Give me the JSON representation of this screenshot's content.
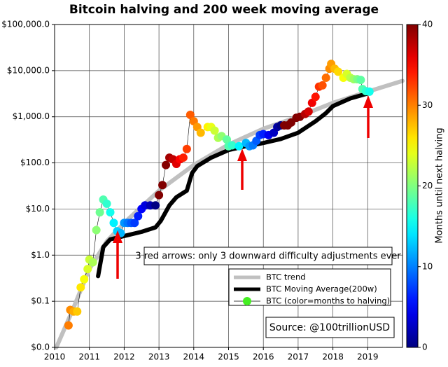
{
  "chart_data": {
    "type": "line",
    "title": "Bitcoin halving and 200 week moving average",
    "log_scale_y": true,
    "grid": true,
    "xlim": [
      2010,
      2020
    ],
    "xticks": [
      2010,
      2011,
      2012,
      2013,
      2014,
      2015,
      2016,
      2017,
      2018,
      2019
    ],
    "ylim": [
      0.01,
      100000
    ],
    "yticks": [
      {
        "value": 0.01,
        "label": "$0.0"
      },
      {
        "value": 0.1,
        "label": "$0.1"
      },
      {
        "value": 1,
        "label": "$1.0"
      },
      {
        "value": 10,
        "label": "$10.0"
      },
      {
        "value": 100,
        "label": "$100.0"
      },
      {
        "value": 1000,
        "label": "$1,000.0"
      },
      {
        "value": 10000,
        "label": "$10,000.0"
      },
      {
        "value": 100000,
        "label": "$100,000.0"
      }
    ],
    "colorbar": {
      "label": "Months until next halving",
      "colormap": "jet",
      "clim": [
        0,
        40
      ],
      "ticks": [
        0,
        10,
        20,
        30,
        40
      ]
    },
    "annotations": [
      "3 red arrows: only 3 downward difficulty adjustments ever",
      "Source: @100trillionUSD"
    ],
    "series": [
      {
        "name": "BTC trend",
        "color": "#c0c0c0",
        "x": [
          2010.05,
          2010.5,
          2011,
          2011.5,
          2012,
          2013,
          2014,
          2015,
          2016,
          2017,
          2018,
          2019,
          2020
        ],
        "values": [
          0.01,
          0.06,
          0.5,
          2,
          5,
          25,
          90,
          250,
          550,
          1000,
          2000,
          3500,
          6000
        ]
      },
      {
        "name": "BTC Moving Average(200w)",
        "color": "#000000",
        "x": [
          2011.25,
          2011.4,
          2011.6,
          2012.0,
          2012.5,
          2012.9,
          2013.05,
          2013.3,
          2013.5,
          2013.8,
          2013.95,
          2014.1,
          2014.5,
          2015.0,
          2015.5,
          2016.0,
          2016.5,
          2017.0,
          2017.5,
          2017.8,
          2018.0,
          2018.5,
          2019.0,
          2019.1
        ],
        "values": [
          0.35,
          1.5,
          2.2,
          2.6,
          3.2,
          4,
          5.5,
          12,
          18,
          25,
          60,
          85,
          130,
          190,
          230,
          270,
          330,
          450,
          800,
          1200,
          1700,
          2500,
          3200,
          3400
        ]
      },
      {
        "name": "BTC (color=months to halving)",
        "type": "scatter",
        "color": "#44ee22",
        "x": [
          2010.4,
          2010.45,
          2010.55,
          2010.65,
          2010.75,
          2010.85,
          2010.95,
          2011.0,
          2011.1,
          2011.2,
          2011.3,
          2011.4,
          2011.5,
          2011.6,
          2011.7,
          2011.8,
          2011.9,
          2012.0,
          2012.1,
          2012.2,
          2012.3,
          2012.4,
          2012.5,
          2012.6,
          2012.75,
          2012.9,
          2013.0,
          2013.1,
          2013.2,
          2013.3,
          2013.4,
          2013.5,
          2013.6,
          2013.7,
          2013.8,
          2013.9,
          2014.0,
          2014.1,
          2014.2,
          2014.4,
          2014.5,
          2014.6,
          2014.7,
          2014.8,
          2014.95,
          2015.0,
          2015.1,
          2015.3,
          2015.5,
          2015.6,
          2015.7,
          2015.8,
          2015.9,
          2016.0,
          2016.15,
          2016.3,
          2016.4,
          2016.5,
          2016.6,
          2016.7,
          2016.8,
          2016.95,
          2017.05,
          2017.2,
          2017.3,
          2017.4,
          2017.5,
          2017.6,
          2017.7,
          2017.8,
          2017.9,
          2017.95,
          2018.05,
          2018.15,
          2018.3,
          2018.4,
          2018.5,
          2018.6,
          2018.7,
          2018.8,
          2018.85,
          2018.95,
          2019.05
        ],
        "values": [
          0.03,
          0.065,
          0.06,
          0.06,
          0.2,
          0.3,
          0.5,
          0.8,
          0.7,
          3.5,
          8.5,
          16,
          13,
          8.5,
          5,
          3.3,
          3,
          5,
          5,
          5,
          5,
          7,
          10,
          12,
          12,
          12,
          20,
          33,
          90,
          130,
          120,
          95,
          120,
          130,
          200,
          1100,
          800,
          600,
          450,
          600,
          600,
          500,
          350,
          380,
          320,
          230,
          240,
          230,
          270,
          230,
          240,
          300,
          400,
          420,
          400,
          450,
          600,
          650,
          650,
          650,
          750,
          950,
          1000,
          1150,
          1300,
          2000,
          2700,
          4500,
          4800,
          7000,
          11000,
          14000,
          11000,
          9500,
          7000,
          8500,
          7000,
          6500,
          6500,
          6300,
          4000,
          3600,
          3500
        ],
        "c": [
          30.1,
          29.5,
          28.3,
          27.1,
          25.9,
          24.7,
          23.5,
          22.9,
          21.7,
          20.5,
          19.3,
          18.1,
          16.9,
          15.7,
          14.5,
          13.3,
          12.1,
          10.9,
          9.7,
          8.5,
          7.3,
          6.1,
          4.9,
          3.7,
          1.9,
          0.1,
          42.2,
          41,
          39.8,
          38.6,
          37.4,
          36.2,
          35,
          33.8,
          32.6,
          31.4,
          30.2,
          29,
          27.8,
          25.4,
          24.2,
          23,
          21.8,
          20.6,
          18.8,
          18.2,
          17,
          14.6,
          12.2,
          11,
          9.8,
          8.6,
          7.4,
          6.2,
          4.4,
          2.6,
          1.4,
          0.2,
          45,
          43.9,
          42.7,
          40.9,
          39.7,
          37.9,
          36.7,
          35.5,
          34.3,
          33.1,
          31.9,
          30.7,
          29.5,
          28.9,
          27.7,
          26.5,
          24.7,
          23.5,
          22.3,
          21.1,
          19.9,
          18.7,
          18.1,
          16.9,
          15.7
        ]
      }
    ]
  }
}
